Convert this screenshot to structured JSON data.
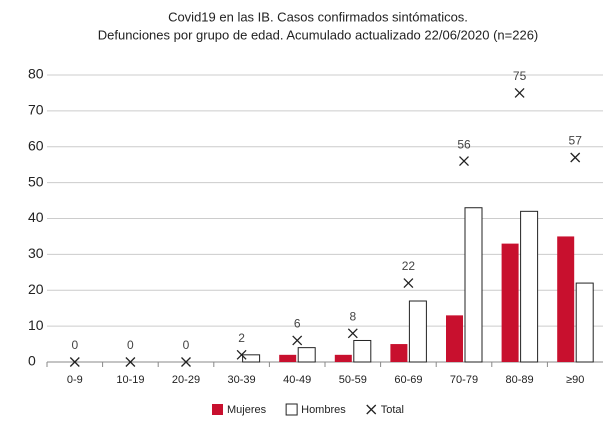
{
  "chart_data": {
    "type": "bar",
    "title": "Covid19 en las IB. Casos confirmados sintómaticos.",
    "subtitle": "Defunciones por grupo de edad. Acumulado actualizado 22/06/2020 (n=226)",
    "categories": [
      "0-9",
      "10-19",
      "20-29",
      "30-39",
      "40-49",
      "50-59",
      "60-69",
      "70-79",
      "80-89",
      "≥90"
    ],
    "series": [
      {
        "name": "Mujeres",
        "color": "#c8102e",
        "values": [
          0,
          0,
          0,
          0,
          2,
          2,
          5,
          13,
          33,
          35
        ]
      },
      {
        "name": "Hombres",
        "color": "#ffffff",
        "values": [
          0,
          0,
          0,
          2,
          4,
          6,
          17,
          43,
          42,
          22
        ]
      },
      {
        "name": "Total",
        "color": "#222222",
        "values": [
          0,
          0,
          0,
          2,
          6,
          8,
          22,
          56,
          75,
          57
        ]
      }
    ],
    "ylim": [
      0,
      80
    ],
    "yticks": [
      0,
      10,
      20,
      30,
      40,
      50,
      60,
      70,
      80
    ],
    "grid": true,
    "legend": "bottom"
  }
}
